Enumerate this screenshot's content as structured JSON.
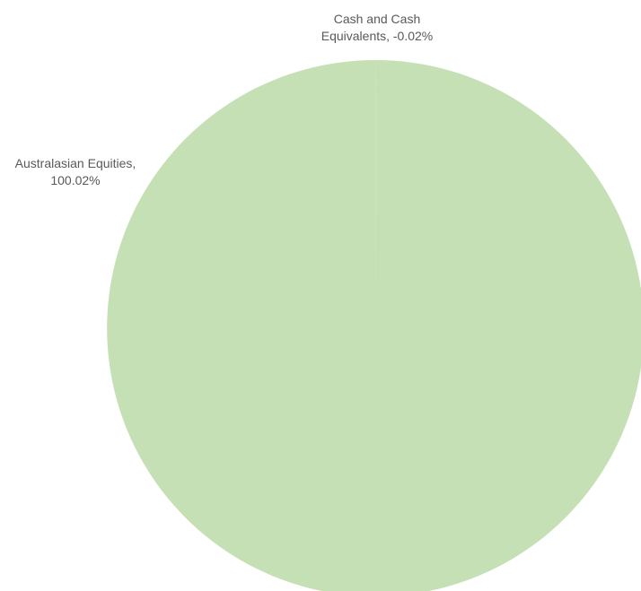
{
  "chart_data": {
    "type": "pie",
    "title": "",
    "slices": [
      {
        "category": "Cash and Cash Equivalents",
        "value": -0.02,
        "label_line1": "Cash and Cash",
        "label_line2": "Equivalents, -0.02%",
        "color": "#c5e0b4"
      },
      {
        "category": "Australasian Equities",
        "value": 100.02,
        "label_line1": "Australasian Equities,",
        "label_line2": "100.02%",
        "color": "#c5e0b4"
      }
    ],
    "unit": "%",
    "legend": "none",
    "data_labels": "outside"
  }
}
